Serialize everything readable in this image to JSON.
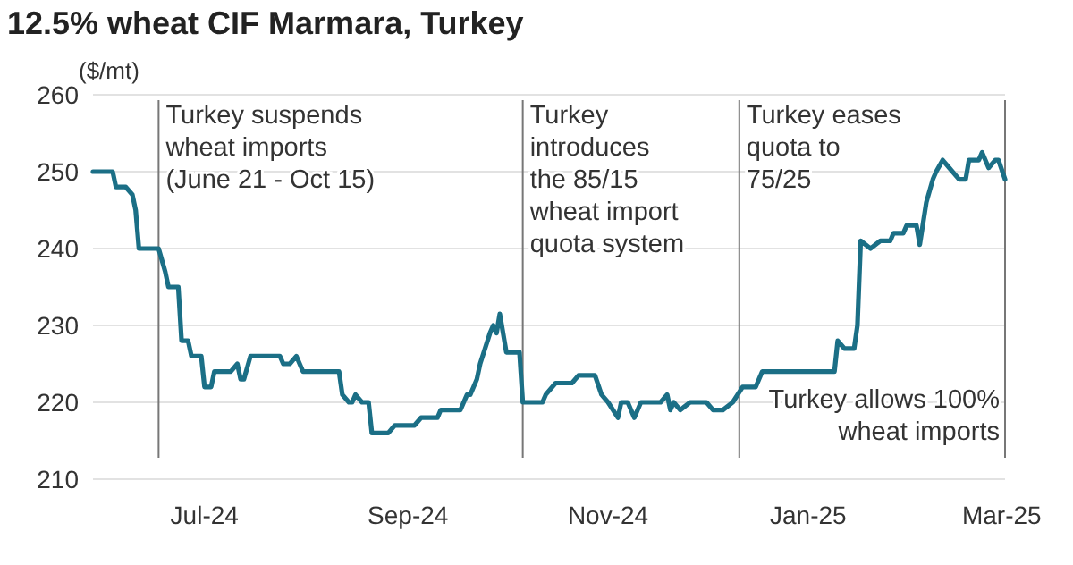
{
  "chart_data": {
    "type": "line",
    "title": "12.5% wheat CIF Marmara, Turkey",
    "ylabel": "($/mt)",
    "x": [
      "2024-05-28",
      "2024-06-03",
      "2024-06-04",
      "2024-06-07",
      "2024-06-09",
      "2024-06-10",
      "2024-06-11",
      "2024-06-17",
      "2024-06-19",
      "2024-06-20",
      "2024-06-23",
      "2024-06-24",
      "2024-06-26",
      "2024-06-27",
      "2024-06-30",
      "2024-07-01",
      "2024-07-03",
      "2024-07-04",
      "2024-07-09",
      "2024-07-11",
      "2024-07-12",
      "2024-07-13",
      "2024-07-15",
      "2024-07-24",
      "2024-07-25",
      "2024-07-27",
      "2024-07-29",
      "2024-07-31",
      "2024-08-11",
      "2024-08-12",
      "2024-08-14",
      "2024-08-15",
      "2024-08-16",
      "2024-08-18",
      "2024-08-20",
      "2024-08-21",
      "2024-08-26",
      "2024-08-28",
      "2024-09-03",
      "2024-09-05",
      "2024-09-10",
      "2024-09-11",
      "2024-09-17",
      "2024-09-19",
      "2024-09-20",
      "2024-09-22",
      "2024-09-23",
      "2024-09-26",
      "2024-09-27",
      "2024-09-28",
      "2024-09-29",
      "2024-10-01",
      "2024-10-05",
      "2024-10-06",
      "2024-10-12",
      "2024-10-13",
      "2024-10-16",
      "2024-10-21",
      "2024-10-23",
      "2024-10-28",
      "2024-10-30",
      "2024-11-01",
      "2024-11-04",
      "2024-11-05",
      "2024-11-07",
      "2024-11-09",
      "2024-11-11",
      "2024-11-17",
      "2024-11-19",
      "2024-11-20",
      "2024-11-21",
      "2024-11-23",
      "2024-11-26",
      "2024-12-01",
      "2024-12-03",
      "2024-12-06",
      "2024-12-09",
      "2024-12-12",
      "2024-12-16",
      "2024-12-18",
      "2025-01-09",
      "2025-01-10",
      "2025-01-12",
      "2025-01-15",
      "2025-01-16",
      "2025-01-17",
      "2025-01-20",
      "2025-01-23",
      "2025-01-26",
      "2025-01-27",
      "2025-01-30",
      "2025-01-31",
      "2025-02-03",
      "2025-02-04",
      "2025-02-06",
      "2025-02-08",
      "2025-02-09",
      "2025-02-11",
      "2025-02-13",
      "2025-02-16",
      "2025-02-18",
      "2025-02-19",
      "2025-02-22",
      "2025-02-23",
      "2025-02-25",
      "2025-02-27",
      "2025-02-28",
      "2025-03-02"
    ],
    "series": [
      {
        "color": "#1b6f86",
        "values": [
          250,
          250,
          248,
          248,
          247,
          245,
          240,
          240,
          237,
          235,
          235,
          228,
          228,
          226,
          226,
          222,
          222,
          224,
          224,
          225,
          223,
          223,
          226,
          226,
          225,
          225,
          226,
          224,
          224,
          221,
          220,
          220,
          221,
          220,
          220,
          216,
          216,
          217,
          217,
          218,
          218,
          219,
          219,
          221,
          221,
          223,
          225,
          229,
          230,
          229,
          231.5,
          226.5,
          226.5,
          220,
          220,
          221,
          222.5,
          222.5,
          223.5,
          223.5,
          221,
          220,
          218,
          220,
          220,
          218,
          220,
          220,
          221,
          219,
          220,
          219,
          220,
          220,
          219,
          219,
          220,
          222,
          222,
          224,
          224,
          228,
          227,
          227,
          230,
          241,
          240,
          241,
          241,
          242,
          242,
          243,
          243,
          240.5,
          246,
          249,
          250,
          251.5,
          250.5,
          249,
          249,
          251.5,
          251.5,
          252.5,
          250.5,
          251.5,
          251.5,
          249
        ]
      }
    ],
    "xlim": [
      "2024-05-28",
      "2025-03-02"
    ],
    "xticks": [
      {
        "value": "2024-07-01",
        "label": "Jul-24"
      },
      {
        "value": "2024-09-01",
        "label": "Sep-24"
      },
      {
        "value": "2024-11-01",
        "label": "Nov-24"
      },
      {
        "value": "2025-01-01",
        "label": "Jan-25"
      },
      {
        "value": "2025-03-01",
        "label": "Mar-25"
      }
    ],
    "ylim": [
      210,
      260
    ],
    "yticks": [
      210,
      220,
      230,
      240,
      250,
      260
    ],
    "grid": "y",
    "ref_lines": [
      {
        "axis": "x",
        "value": "2024-06-17",
        "label": "Turkey suspends\nwheat imports\n(June 21 - Oct 15)"
      },
      {
        "axis": "x",
        "value": "2024-10-06",
        "label": "Turkey\nintroduces\nthe 85/15\nwheat import\nquota system"
      },
      {
        "axis": "x",
        "value": "2024-12-11",
        "label": "Turkey eases\nquota to\n75/25"
      },
      {
        "axis": "x",
        "value": "2025-03-02",
        "label": "Turkey allows 100%\nwheat imports"
      }
    ]
  }
}
